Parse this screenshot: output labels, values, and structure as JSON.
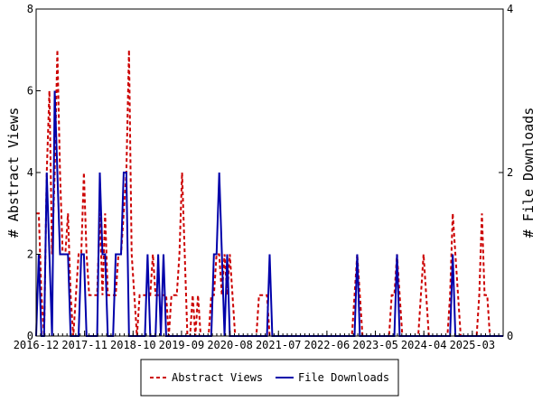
{
  "chart_data": {
    "type": "line",
    "title": "",
    "xlabel": "",
    "ylabel_left": "# Abstract Views",
    "ylabel_right": "# File Downloads",
    "x_tick_labels": [
      "2016-12",
      "2017-11",
      "2018-10",
      "2019-09",
      "2020-08",
      "2021-07",
      "2022-06",
      "2023-05",
      "2024-04",
      "2025-03"
    ],
    "x_range": [
      "2016-12",
      "2025-10"
    ],
    "ylim_left": [
      0,
      8
    ],
    "ylim_right": [
      0,
      4
    ],
    "y_ticks_left": [
      "0",
      "2",
      "4",
      "6",
      "8"
    ],
    "y_ticks_right": [
      "0",
      "2",
      "4"
    ],
    "grid": false,
    "legend_position": "bottom",
    "series": [
      {
        "name": "Abstract Views",
        "axis": "left",
        "color": "#cc0000",
        "style": "dashed",
        "values": [
          3,
          3,
          1,
          0,
          4,
          6,
          2,
          4,
          7,
          4,
          2,
          2,
          3,
          1,
          0,
          1,
          2,
          2,
          4,
          2,
          1,
          1,
          1,
          1,
          3,
          1,
          3,
          1,
          1,
          1,
          1,
          2,
          2,
          3,
          4,
          7,
          2,
          1,
          0,
          1,
          1,
          1,
          1,
          1,
          2,
          1,
          1,
          1,
          1,
          1,
          0,
          1,
          1,
          1,
          2,
          4,
          2,
          0,
          0,
          1,
          0,
          1,
          0,
          0,
          0,
          0,
          1,
          1,
          2,
          2,
          1,
          2,
          1,
          2,
          1,
          0,
          0,
          0,
          0,
          0,
          0,
          0,
          0,
          0,
          1,
          1,
          1,
          1,
          0,
          0,
          0,
          0,
          0,
          0,
          0,
          0,
          0,
          0,
          0,
          0,
          0,
          0,
          0,
          0,
          0,
          0,
          0,
          0,
          0,
          0,
          0,
          0,
          0,
          0,
          0,
          0,
          0,
          0,
          0,
          0,
          1,
          2,
          1,
          0,
          0,
          0,
          0,
          0,
          0,
          0,
          0,
          0,
          0,
          0,
          1,
          1,
          2,
          1,
          0,
          0,
          0,
          0,
          0,
          0,
          0,
          1,
          2,
          1,
          0,
          0,
          0,
          0,
          0,
          0,
          0,
          0,
          1,
          3,
          2,
          1,
          0,
          0,
          0,
          0,
          0,
          0,
          0,
          1,
          3,
          1,
          1,
          0,
          0,
          0,
          0,
          0,
          0
        ]
      },
      {
        "name": "File Downloads",
        "axis": "right",
        "color": "#0000aa",
        "style": "solid",
        "values": [
          0,
          1,
          0,
          0,
          2,
          1,
          0,
          3,
          2,
          1,
          1,
          1,
          1,
          0,
          0,
          0,
          0,
          1,
          1,
          0,
          0,
          0,
          0,
          0,
          2,
          1,
          1,
          0,
          0,
          0,
          1,
          1,
          1,
          2,
          2,
          0,
          0,
          0,
          0,
          0,
          0,
          0,
          1,
          0,
          0,
          0,
          1,
          0,
          1,
          0,
          0,
          0,
          0,
          0,
          0,
          0,
          0,
          0,
          0,
          0,
          0,
          0,
          0,
          0,
          0,
          0,
          0,
          1,
          1,
          2,
          1,
          0,
          1,
          0,
          0,
          0,
          0,
          0,
          0,
          0,
          0,
          0,
          0,
          0,
          0,
          0,
          0,
          0,
          1,
          0,
          0,
          0,
          0,
          0,
          0,
          0,
          0,
          0,
          0,
          0,
          0,
          0,
          0,
          0,
          0,
          0,
          0,
          0,
          0,
          0,
          0,
          0,
          0,
          0,
          0,
          0,
          0,
          0,
          0,
          0,
          0,
          1,
          0,
          0,
          0,
          0,
          0,
          0,
          0,
          0,
          0,
          0,
          0,
          0,
          0,
          0,
          1,
          0,
          0,
          0,
          0,
          0,
          0,
          0,
          0,
          0,
          0,
          0,
          0,
          0,
          0,
          0,
          0,
          0,
          0,
          0,
          0,
          1,
          0,
          0,
          0,
          0,
          0,
          0,
          0,
          0,
          0,
          0,
          0,
          0,
          0,
          0,
          0,
          0,
          0,
          0,
          0
        ]
      }
    ]
  }
}
